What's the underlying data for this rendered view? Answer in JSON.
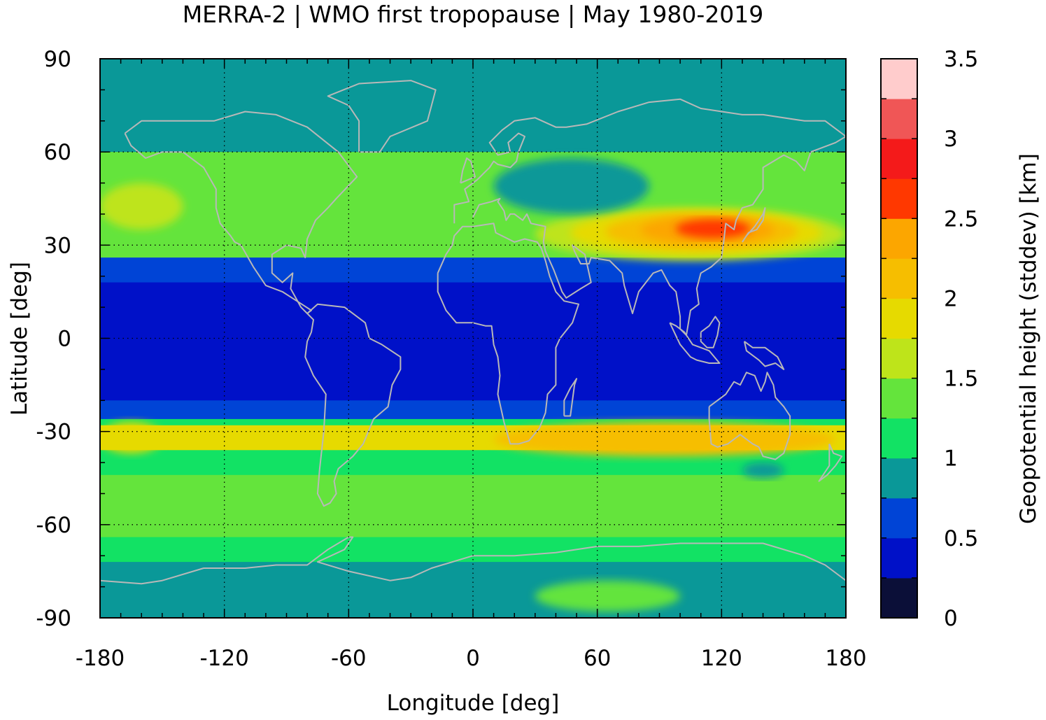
{
  "chart_data": {
    "type": "heatmap",
    "title": "MERRA-2 | WMO first tropopause | May 1980-2019",
    "xlabel": "Longitude [deg]",
    "ylabel": "Latitude [deg]",
    "colorbar_label": "Geopotential height (stddev) [km]",
    "xlim": [
      -180,
      180
    ],
    "ylim": [
      -90,
      90
    ],
    "xticks": [
      -180,
      -120,
      -60,
      0,
      60,
      120,
      180
    ],
    "yticks": [
      90,
      60,
      30,
      0,
      -30,
      -60,
      -90
    ],
    "xtick_labels": [
      "-180",
      "-120",
      "-60",
      "0",
      "60",
      "120",
      "180"
    ],
    "ytick_labels": [
      "90",
      "60",
      "30",
      "0",
      "-30",
      "-60",
      "-90"
    ],
    "grid": true,
    "colorbar": {
      "range": [
        0,
        3.5
      ],
      "tick_values": [
        0,
        0.5,
        1,
        1.5,
        2,
        2.5,
        3,
        3.5
      ],
      "tick_labels": [
        "0",
        "0.5",
        "1",
        "1.5",
        "2",
        "2.5",
        "3",
        "3.5"
      ],
      "levels": [
        {
          "from": 0.0,
          "to": 0.25,
          "color": "#0b0f38"
        },
        {
          "from": 0.25,
          "to": 0.5,
          "color": "#0011c8"
        },
        {
          "from": 0.5,
          "to": 0.75,
          "color": "#0044d6"
        },
        {
          "from": 0.75,
          "to": 1.0,
          "color": "#0a9898"
        },
        {
          "from": 1.0,
          "to": 1.25,
          "color": "#12e264"
        },
        {
          "from": 1.25,
          "to": 1.5,
          "color": "#64e43c"
        },
        {
          "from": 1.5,
          "to": 1.75,
          "color": "#bee41a"
        },
        {
          "from": 1.75,
          "to": 2.0,
          "color": "#e6da00"
        },
        {
          "from": 2.0,
          "to": 2.25,
          "color": "#f6be00"
        },
        {
          "from": 2.25,
          "to": 2.5,
          "color": "#fca600"
        },
        {
          "from": 2.5,
          "to": 2.75,
          "color": "#ff3800"
        },
        {
          "from": 2.75,
          "to": 3.0,
          "color": "#f41a1a"
        },
        {
          "from": 3.0,
          "to": 3.25,
          "color": "#f05656"
        },
        {
          "from": 3.25,
          "to": 3.5,
          "color": "#ffcccc"
        }
      ]
    },
    "latitude_band_values": [
      {
        "lat": [
          60,
          90
        ],
        "value": 0.9
      },
      {
        "lat": [
          38,
          60
        ],
        "value": 1.3
      },
      {
        "lat": [
          26,
          38
        ],
        "value": 1.4
      },
      {
        "lat": [
          18,
          26
        ],
        "value": 0.6
      },
      {
        "lat": [
          -20,
          18
        ],
        "value": 0.4
      },
      {
        "lat": [
          -26,
          -20
        ],
        "value": 0.7
      },
      {
        "lat": [
          -28,
          -26
        ],
        "value": 1.1
      },
      {
        "lat": [
          -36,
          -28
        ],
        "value": 1.9
      },
      {
        "lat": [
          -44,
          -36
        ],
        "value": 1.2
      },
      {
        "lat": [
          -64,
          -44
        ],
        "value": 1.3
      },
      {
        "lat": [
          -72,
          -64
        ],
        "value": 1.1
      },
      {
        "lat": [
          -90,
          -72
        ],
        "value": 0.9
      }
    ],
    "features": [
      {
        "region": "subtropical jet over Asia",
        "lon": [
          30,
          180
        ],
        "lat": [
          25,
          42
        ],
        "max_value": 2.6
      },
      {
        "region": "North Pacific",
        "lon": [
          -180,
          -140
        ],
        "lat": [
          35,
          50
        ],
        "value": 1.6
      },
      {
        "region": "South Pacific",
        "lon": [
          -180,
          -150
        ],
        "lat": [
          -37,
          -27
        ],
        "value": 1.9
      },
      {
        "region": "Indian Ocean / Australia",
        "lon": [
          10,
          175
        ],
        "lat": [
          -38,
          -27
        ],
        "value": 2.0
      },
      {
        "region": "Europe / western Siberia",
        "lon": [
          10,
          85
        ],
        "lat": [
          40,
          58
        ],
        "value": 0.9
      },
      {
        "region": "Central Antarctica",
        "lon": [
          30,
          100
        ],
        "lat": [
          -88,
          -78
        ],
        "value": 1.3
      },
      {
        "region": "south of Australia",
        "lon": [
          130,
          150
        ],
        "lat": [
          -45,
          -40
        ],
        "value": 0.9
      }
    ]
  }
}
